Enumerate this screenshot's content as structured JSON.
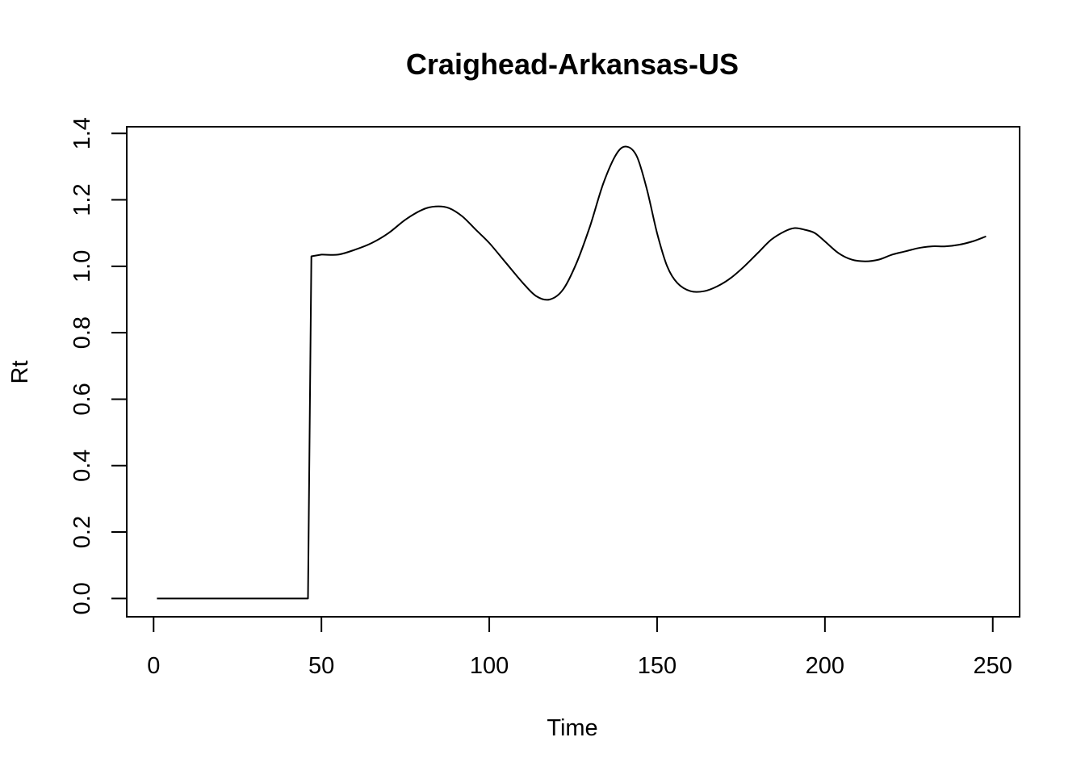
{
  "chart_data": {
    "type": "line",
    "title": "Craighead-Arkansas-US",
    "xlabel": "Time",
    "ylabel": "Rt",
    "xlim": [
      -8,
      258
    ],
    "ylim": [
      -0.055,
      1.42
    ],
    "xticks": [
      0,
      50,
      100,
      150,
      200,
      250
    ],
    "xtick_labels": [
      "0",
      "50",
      "100",
      "150",
      "200",
      "250"
    ],
    "yticks": [
      0.0,
      0.2,
      0.4,
      0.6,
      0.8,
      1.0,
      1.2,
      1.4
    ],
    "ytick_labels": [
      "0.0",
      "0.2",
      "0.4",
      "0.6",
      "0.8",
      "1.0",
      "1.2",
      "1.4"
    ],
    "grid": false,
    "line_color": "#000000",
    "series": [
      {
        "x": [
          1,
          10,
          20,
          30,
          40,
          46,
          47,
          50,
          55,
          60,
          65,
          70,
          75,
          80,
          84,
          88,
          92,
          96,
          100,
          105,
          110,
          114,
          118,
          122,
          126,
          130,
          134,
          138,
          141,
          144,
          147,
          150,
          153,
          156,
          160,
          164,
          168,
          172,
          176,
          180,
          184,
          188,
          191,
          194,
          197,
          200,
          204,
          208,
          212,
          216,
          220,
          224,
          228,
          232,
          236,
          240,
          244,
          248
        ],
        "y": [
          0.0,
          0.0,
          0.0,
          0.0,
          0.0,
          0.0,
          1.03,
          1.035,
          1.035,
          1.05,
          1.07,
          1.1,
          1.14,
          1.17,
          1.18,
          1.175,
          1.15,
          1.11,
          1.07,
          1.01,
          0.95,
          0.91,
          0.9,
          0.93,
          1.01,
          1.12,
          1.25,
          1.34,
          1.36,
          1.33,
          1.23,
          1.1,
          1.0,
          0.95,
          0.925,
          0.925,
          0.94,
          0.965,
          1.0,
          1.04,
          1.08,
          1.105,
          1.115,
          1.11,
          1.1,
          1.075,
          1.04,
          1.02,
          1.015,
          1.02,
          1.035,
          1.045,
          1.055,
          1.06,
          1.06,
          1.065,
          1.075,
          1.09
        ]
      }
    ]
  }
}
